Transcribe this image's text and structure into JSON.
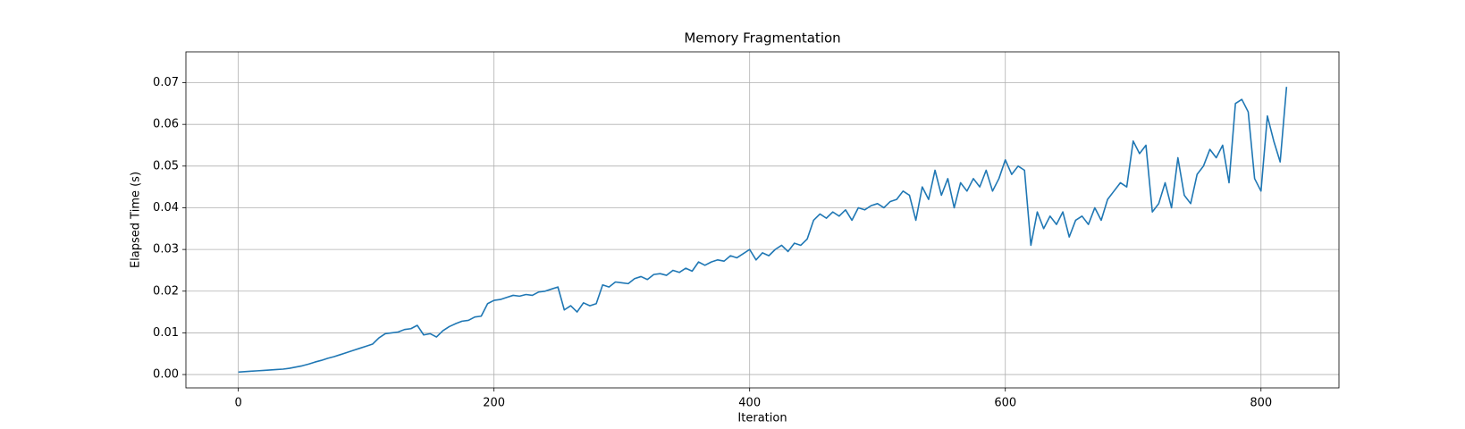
{
  "chart_data": {
    "type": "line",
    "title": "Memory Fragmentation",
    "x_label": "Iteration",
    "y_label": "Elapsed Time (s)",
    "x": [
      0,
      5,
      10,
      15,
      20,
      25,
      30,
      35,
      40,
      45,
      50,
      55,
      60,
      65,
      70,
      75,
      80,
      85,
      90,
      95,
      100,
      105,
      110,
      115,
      120,
      125,
      130,
      135,
      140,
      145,
      150,
      155,
      160,
      165,
      170,
      175,
      180,
      185,
      190,
      195,
      200,
      205,
      210,
      215,
      220,
      225,
      230,
      235,
      240,
      245,
      250,
      255,
      260,
      265,
      270,
      275,
      280,
      285,
      290,
      295,
      300,
      305,
      310,
      315,
      320,
      325,
      330,
      335,
      340,
      345,
      350,
      355,
      360,
      365,
      370,
      375,
      380,
      385,
      390,
      395,
      400,
      405,
      410,
      415,
      420,
      425,
      430,
      435,
      440,
      445,
      450,
      455,
      460,
      465,
      470,
      475,
      480,
      485,
      490,
      495,
      500,
      505,
      510,
      515,
      520,
      525,
      530,
      535,
      540,
      545,
      550,
      555,
      560,
      565,
      570,
      575,
      580,
      585,
      590,
      595,
      600,
      605,
      610,
      615,
      620,
      625,
      630,
      635,
      640,
      645,
      650,
      655,
      660,
      665,
      670,
      675,
      680,
      685,
      690,
      695,
      700,
      705,
      710,
      715,
      720,
      725,
      730,
      735,
      740,
      745,
      750,
      755,
      760,
      765,
      770,
      775,
      780,
      785,
      790,
      795,
      800,
      805,
      810,
      815,
      820
    ],
    "series": [
      {
        "name": "Elapsed Time",
        "color": "#1f77b4",
        "values": [
          0.0006,
          0.0007,
          0.0008,
          0.0009,
          0.001,
          0.0011,
          0.0012,
          0.0013,
          0.0015,
          0.0018,
          0.0021,
          0.0025,
          0.003,
          0.0034,
          0.0039,
          0.0043,
          0.0048,
          0.0053,
          0.0058,
          0.0063,
          0.0068,
          0.0073,
          0.0088,
          0.0098,
          0.01,
          0.0102,
          0.0108,
          0.011,
          0.0118,
          0.0095,
          0.0098,
          0.009,
          0.0105,
          0.0115,
          0.0122,
          0.0128,
          0.013,
          0.0138,
          0.014,
          0.017,
          0.0178,
          0.018,
          0.0185,
          0.019,
          0.0188,
          0.0192,
          0.019,
          0.0198,
          0.02,
          0.0205,
          0.021,
          0.0155,
          0.0165,
          0.015,
          0.0172,
          0.0165,
          0.017,
          0.0215,
          0.021,
          0.0222,
          0.022,
          0.0218,
          0.023,
          0.0235,
          0.0228,
          0.024,
          0.0242,
          0.0238,
          0.025,
          0.0245,
          0.0255,
          0.0248,
          0.027,
          0.0262,
          0.027,
          0.0275,
          0.0272,
          0.0285,
          0.028,
          0.029,
          0.03,
          0.0275,
          0.0292,
          0.0285,
          0.03,
          0.031,
          0.0295,
          0.0315,
          0.031,
          0.0325,
          0.037,
          0.0385,
          0.0375,
          0.039,
          0.038,
          0.0395,
          0.037,
          0.04,
          0.0395,
          0.0405,
          0.041,
          0.04,
          0.0415,
          0.042,
          0.044,
          0.043,
          0.037,
          0.045,
          0.042,
          0.049,
          0.043,
          0.047,
          0.04,
          0.046,
          0.044,
          0.047,
          0.045,
          0.049,
          0.044,
          0.047,
          0.0515,
          0.048,
          0.05,
          0.049,
          0.031,
          0.039,
          0.035,
          0.038,
          0.036,
          0.039,
          0.033,
          0.037,
          0.038,
          0.036,
          0.04,
          0.037,
          0.042,
          0.044,
          0.046,
          0.045,
          0.056,
          0.053,
          0.055,
          0.039,
          0.041,
          0.046,
          0.04,
          0.052,
          0.043,
          0.041,
          0.048,
          0.05,
          0.054,
          0.052,
          0.055,
          0.046,
          0.065,
          0.066,
          0.063,
          0.047,
          0.044,
          0.062,
          0.056,
          0.051,
          0.069
        ]
      }
    ],
    "xlim": [
      -41,
      861
    ],
    "xticks": [
      0,
      200,
      400,
      600,
      800
    ],
    "ylim": [
      -0.0032,
      0.0774
    ],
    "yticks": [
      {
        "value": 0,
        "label": "0.00"
      },
      0.01,
      0.02,
      0.03,
      0.04,
      0.05,
      0.06,
      0.07
    ],
    "grid": true
  }
}
